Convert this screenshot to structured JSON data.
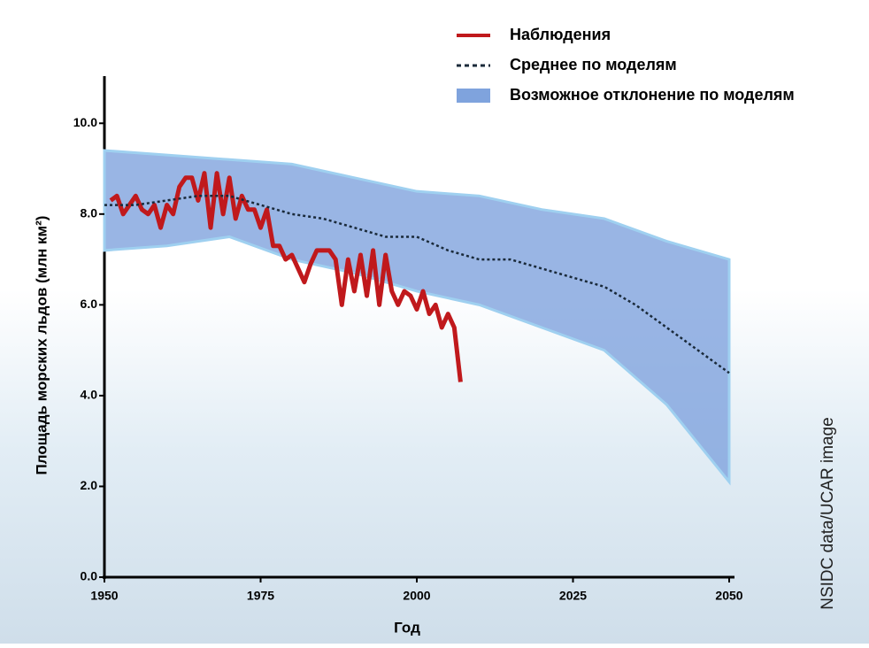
{
  "chart_data": {
    "type": "line",
    "xlabel": "Год",
    "ylabel": "Площадь морских льдов (млн км²)",
    "credit": "NSIDC data/UCAR image",
    "xlim": [
      1950,
      2050
    ],
    "xticks": [
      1950,
      1975,
      2000,
      2025,
      2050
    ],
    "ylim": [
      0,
      11
    ],
    "yticks": [
      {
        "value": 0,
        "label": "0.0"
      },
      {
        "value": 2,
        "label": "2.0"
      },
      {
        "value": 4,
        "label": "4.0"
      },
      {
        "value": 6,
        "label": "6.0"
      },
      {
        "value": 8,
        "label": "8.0"
      },
      {
        "value": 10,
        "label": "10.0"
      }
    ],
    "series": [
      {
        "name": "Наблюдения",
        "color": "#c0191c",
        "style": "solid",
        "x": [
          1951,
          1952,
          1953,
          1955,
          1956,
          1957,
          1958,
          1959,
          1960,
          1961,
          1962,
          1963,
          1964,
          1965,
          1966,
          1967,
          1968,
          1969,
          1970,
          1971,
          1972,
          1973,
          1974,
          1975,
          1976,
          1977,
          1978,
          1979,
          1980,
          1981,
          1982,
          1983,
          1984,
          1985,
          1986,
          1987,
          1988,
          1989,
          1990,
          1991,
          1992,
          1993,
          1994,
          1995,
          1996,
          1997,
          1998,
          1999,
          2000,
          2001,
          2002,
          2003,
          2004,
          2005,
          2006,
          2007
        ],
        "values": [
          8.3,
          8.4,
          8.0,
          8.4,
          8.1,
          8.0,
          8.2,
          7.7,
          8.2,
          8.0,
          8.6,
          8.8,
          8.8,
          8.3,
          8.9,
          7.7,
          8.9,
          8.0,
          8.8,
          7.9,
          8.4,
          8.1,
          8.1,
          7.7,
          8.1,
          7.3,
          7.3,
          7.0,
          7.1,
          6.8,
          6.5,
          6.9,
          7.2,
          7.2,
          7.2,
          7.0,
          6.0,
          7.0,
          6.3,
          7.1,
          6.2,
          7.2,
          6.0,
          7.1,
          6.3,
          6.0,
          6.3,
          6.2,
          5.9,
          6.3,
          5.8,
          6.0,
          5.5,
          5.8,
          5.5,
          4.3
        ]
      },
      {
        "name": "Среднее по моделям",
        "color": "#1a2a3a",
        "style": "dotted",
        "x": [
          1950,
          1955,
          1960,
          1965,
          1970,
          1975,
          1980,
          1985,
          1990,
          1995,
          2000,
          2005,
          2010,
          2015,
          2020,
          2025,
          2030,
          2035,
          2040,
          2045,
          2050
        ],
        "values": [
          8.2,
          8.2,
          8.3,
          8.4,
          8.4,
          8.2,
          8.0,
          7.9,
          7.7,
          7.5,
          7.5,
          7.2,
          7.0,
          7.0,
          6.8,
          6.6,
          6.4,
          6.0,
          5.5,
          5.0,
          4.5
        ]
      },
      {
        "name": "Возможное отклонение по моделям",
        "color": "#7fa3dd",
        "style": "band",
        "x": [
          1950,
          1960,
          1970,
          1980,
          1990,
          2000,
          2010,
          2020,
          2030,
          2040,
          2050
        ],
        "upper": [
          9.4,
          9.3,
          9.2,
          9.1,
          8.8,
          8.5,
          8.4,
          8.1,
          7.9,
          7.4,
          7.0
        ],
        "lower": [
          7.2,
          7.3,
          7.5,
          7.0,
          6.7,
          6.3,
          6.0,
          5.5,
          5.0,
          3.8,
          2.1
        ]
      }
    ]
  }
}
